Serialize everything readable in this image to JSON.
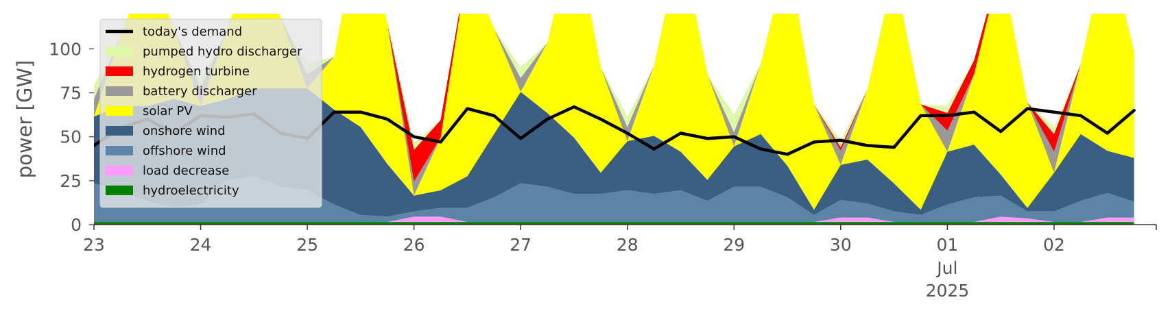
{
  "chart_data": {
    "type": "area",
    "ylabel": "power [GW]",
    "ylim": [
      0,
      120
    ],
    "xlim": [
      "2025-06-23T00:00",
      "2025-07-02T23:00"
    ],
    "y_ticks": [
      0,
      25,
      50,
      75,
      100
    ],
    "x_ticks": [
      {
        "x": "2025-06-23",
        "label": "23"
      },
      {
        "x": "2025-06-24",
        "label": "24"
      },
      {
        "x": "2025-06-25",
        "label": "25"
      },
      {
        "x": "2025-06-26",
        "label": "26"
      },
      {
        "x": "2025-06-27",
        "label": "27"
      },
      {
        "x": "2025-06-28",
        "label": "28"
      },
      {
        "x": "2025-06-29",
        "label": "29"
      },
      {
        "x": "2025-06-30",
        "label": "30"
      },
      {
        "x": "2025-07-01",
        "label": "01",
        "sublabel": "Jul",
        "sublabel2": "2025"
      },
      {
        "x": "2025-07-02",
        "label": "02"
      }
    ],
    "grid": false,
    "legend_position": "top-left",
    "series": [
      {
        "name": "hydroelectricity",
        "color": "#008000",
        "values": [
          1.5,
          1.5,
          1.5,
          1.5,
          1.5,
          1.5,
          1.5,
          1.5,
          1.5,
          1.5,
          1.5,
          1.5,
          1.5,
          1.5,
          1.5,
          1.5,
          1.5,
          1.5,
          1.5,
          1.5,
          1.5,
          1.5,
          1.5,
          1.5,
          1.5,
          1.5,
          1.5,
          1.5,
          1.5,
          1.5,
          1.5,
          1.5,
          1.5,
          1.5,
          1.5,
          1.5,
          1.5,
          1.5,
          1.5,
          1.5
        ]
      },
      {
        "name": "load decrease",
        "color": "#ff99ff",
        "values": [
          0,
          0,
          0,
          0,
          0,
          0,
          0,
          0,
          0,
          0,
          0,
          0,
          3,
          3,
          0,
          0,
          0,
          0,
          0,
          0,
          0,
          0,
          0,
          0,
          0,
          0,
          0,
          0,
          2.5,
          2.5,
          0,
          0,
          0,
          0,
          3,
          2,
          0,
          0,
          2.5,
          2.5
        ]
      },
      {
        "name": "offshore wind",
        "color": "#5b84a8",
        "values": [
          22,
          18,
          12,
          8,
          10,
          24,
          26,
          20,
          18,
          10,
          4,
          3,
          3,
          5,
          8,
          14,
          22,
          20,
          16,
          16,
          18,
          16,
          18,
          12,
          20,
          20,
          14,
          4,
          10,
          8,
          6,
          4,
          10,
          14,
          12,
          4,
          6,
          12,
          14,
          9
        ]
      },
      {
        "name": "onshore wind",
        "color": "#3b5f82",
        "values": [
          38,
          48,
          54,
          62,
          56,
          46,
          50,
          56,
          58,
          54,
          50,
          30,
          9,
          10,
          18,
          36,
          52,
          42,
          32,
          12,
          28,
          33,
          22,
          12,
          23,
          30,
          18,
          3,
          20,
          25,
          16,
          3,
          30,
          30,
          12,
          2,
          22,
          38,
          24,
          25
        ]
      },
      {
        "name": "solar PV",
        "color": "#ffff00",
        "values": [
          0,
          40,
          80,
          40,
          0,
          40,
          80,
          40,
          0,
          30,
          120,
          80,
          0,
          30,
          120,
          60,
          0,
          40,
          120,
          60,
          0,
          40,
          120,
          60,
          0,
          40,
          120,
          60,
          0,
          40,
          120,
          60,
          0,
          40,
          120,
          60,
          0,
          40,
          120,
          60
        ]
      },
      {
        "name": "battery discharger",
        "color": "#999999",
        "values": [
          10,
          0,
          0,
          0,
          10,
          0,
          0,
          0,
          8,
          0,
          0,
          0,
          8,
          0,
          0,
          0,
          8,
          0,
          0,
          0,
          8,
          0,
          0,
          0,
          8,
          0,
          0,
          0,
          8,
          0,
          0,
          0,
          12,
          0,
          0,
          0,
          12,
          0,
          0,
          0
        ]
      },
      {
        "name": "hydrogen turbine",
        "color": "#ff0000",
        "values": [
          0,
          0,
          0,
          0,
          0,
          0,
          0,
          0,
          0,
          0,
          0,
          0,
          18,
          10,
          0,
          0,
          0,
          0,
          0,
          0,
          0,
          0,
          0,
          0,
          0,
          0,
          0,
          0,
          2,
          0,
          0,
          0,
          10,
          8,
          0,
          0,
          10,
          0,
          0,
          0
        ]
      },
      {
        "name": "pumped hydro discharger",
        "color": "#ddf8a8",
        "values": [
          8,
          0,
          0,
          0,
          4,
          0,
          0,
          0,
          6,
          0,
          0,
          0,
          4,
          0,
          0,
          0,
          6,
          0,
          0,
          0,
          6,
          0,
          0,
          0,
          10,
          0,
          0,
          0,
          4,
          0,
          0,
          0,
          4,
          0,
          0,
          0,
          4,
          0,
          0,
          0
        ]
      }
    ],
    "demand": {
      "name": "today's demand",
      "color": "#000000",
      "values": [
        45,
        55,
        60,
        52,
        62,
        61,
        63,
        52,
        49,
        64,
        64,
        60,
        50,
        47,
        66,
        62,
        49,
        60,
        67,
        60,
        52,
        43,
        52,
        49,
        50,
        43,
        40,
        47,
        48,
        45,
        44,
        62,
        62,
        64,
        53,
        66,
        64,
        62,
        52,
        65
      ]
    },
    "legend_order": [
      "today's demand",
      "pumped hydro discharger",
      "hydrogen turbine",
      "battery discharger",
      "solar PV",
      "onshore wind",
      "offshore wind",
      "load decrease",
      "hydroelectricity"
    ]
  }
}
